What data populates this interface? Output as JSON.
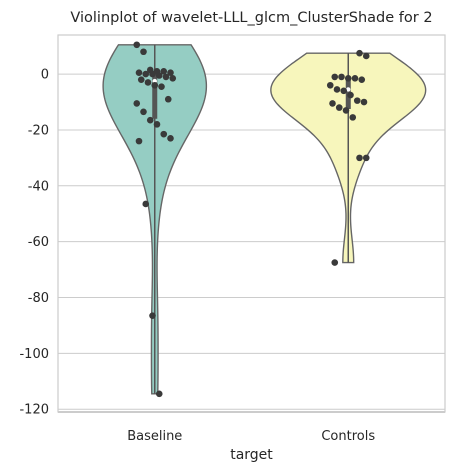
{
  "chart_data": {
    "type": "violin",
    "title": "Violinplot of wavelet-LLL_glcm_ClusterShade for 2",
    "xlabel": "target",
    "ylabel": "",
    "ylim": [
      -121,
      14
    ],
    "yticks": [
      0,
      -20,
      -40,
      -60,
      -80,
      -100,
      -120
    ],
    "grid": "horizontal",
    "categories": [
      "Baseline",
      "Controls"
    ],
    "series": [
      {
        "name": "Baseline",
        "color": "#95CDC3",
        "range": [
          -114.5,
          10.5
        ],
        "quartiles": [
          -16.0,
          -2.5,
          0.5
        ],
        "points": [
          10.5,
          8.0,
          1.5,
          1.0,
          1.0,
          0.5,
          0.5,
          0.0,
          0.0,
          -0.5,
          -1.0,
          -1.5,
          -2.0,
          -3.0,
          -4.0,
          -4.5,
          -9.0,
          -10.5,
          -13.5,
          -16.5,
          -18.0,
          -21.5,
          -23.0,
          -24.0,
          -46.5,
          -86.5,
          -114.5
        ]
      },
      {
        "name": "Controls",
        "color": "#F7F6BC",
        "range": [
          -67.5,
          7.5
        ],
        "quartiles": [
          -12.5,
          -5.5,
          -1.0
        ],
        "points": [
          7.5,
          6.5,
          -1.0,
          -1.0,
          -1.5,
          -1.5,
          -2.0,
          -4.0,
          -5.5,
          -6.0,
          -7.5,
          -9.5,
          -10.0,
          -10.5,
          -12.0,
          -13.0,
          -15.5,
          -30.0,
          -30.0,
          -67.5
        ]
      }
    ]
  }
}
